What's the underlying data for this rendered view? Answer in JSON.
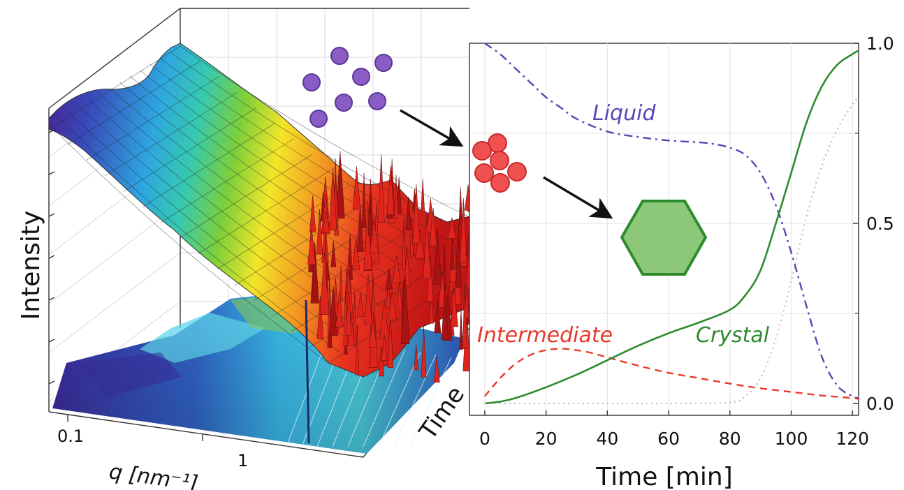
{
  "colors": {
    "liquid": "#5a45b5",
    "intermediate": "#e8392a",
    "crystal": "#2e8b2e",
    "dotted": "#b8b8b8",
    "particle_purple": "#8a5cc6",
    "particle_red": "#f05050",
    "hexagon_fill": "#8cc878"
  },
  "surface_plot": {
    "z_label": "Intensity",
    "x_label": "q [nm⁻¹]",
    "x_tick_labels": [
      "0.1",
      "1"
    ],
    "y_label": "Time",
    "colormap": "jet"
  },
  "icons": [
    "liquid-particles-icon",
    "intermediate-cluster-icon",
    "crystal-hexagon-icon",
    "arrow-icon"
  ],
  "chart_data": [
    {
      "type": "surface",
      "title": "",
      "xlabel": "q [nm⁻¹]",
      "ylabel": "Time",
      "zlabel": "Intensity",
      "x_scale": "log",
      "x_ticks": [
        "0.1",
        "1"
      ]
    },
    {
      "type": "line",
      "title": "",
      "xlabel": "Time [min]",
      "ylabel": "",
      "xlim": [
        -5,
        122
      ],
      "ylim": [
        0,
        1.0
      ],
      "x_ticks": [
        0,
        20,
        40,
        60,
        80,
        100,
        120
      ],
      "y_ticks": [
        0.0,
        0.5,
        1.0
      ],
      "y_tick_labels": [
        "0.0",
        "0.5",
        "1.0"
      ],
      "y_axis_side": "right",
      "series": [
        {
          "name": "Liquid",
          "style": "dash-dot",
          "x": [
            0,
            5,
            10,
            15,
            20,
            25,
            30,
            40,
            50,
            60,
            70,
            75,
            80,
            85,
            90,
            95,
            100,
            105,
            110,
            115,
            120,
            122
          ],
          "y": [
            1.0,
            0.97,
            0.93,
            0.89,
            0.85,
            0.82,
            0.79,
            0.755,
            0.74,
            0.73,
            0.725,
            0.72,
            0.71,
            0.69,
            0.64,
            0.55,
            0.42,
            0.27,
            0.13,
            0.05,
            0.02,
            0.015
          ]
        },
        {
          "name": "Intermediate",
          "style": "dashed",
          "x": [
            0,
            5,
            10,
            15,
            20,
            25,
            30,
            35,
            40,
            50,
            60,
            70,
            80,
            90,
            100,
            110,
            120,
            122
          ],
          "y": [
            0.02,
            0.07,
            0.11,
            0.135,
            0.148,
            0.152,
            0.148,
            0.14,
            0.128,
            0.105,
            0.085,
            0.07,
            0.055,
            0.042,
            0.032,
            0.022,
            0.015,
            0.012
          ]
        },
        {
          "name": "Crystal",
          "style": "solid",
          "x": [
            0,
            5,
            10,
            20,
            30,
            40,
            50,
            60,
            70,
            80,
            85,
            90,
            95,
            100,
            105,
            110,
            115,
            120,
            122
          ],
          "y": [
            0.0,
            0.005,
            0.015,
            0.045,
            0.08,
            0.12,
            0.16,
            0.195,
            0.225,
            0.26,
            0.3,
            0.37,
            0.5,
            0.64,
            0.78,
            0.88,
            0.94,
            0.97,
            0.98
          ]
        },
        {
          "style": "dotted",
          "x": [
            0,
            20,
            40,
            60,
            80,
            85,
            90,
            95,
            100,
            105,
            110,
            115,
            120,
            122
          ],
          "y": [
            0.0,
            0.0,
            0.0,
            0.0,
            0.003,
            0.02,
            0.07,
            0.18,
            0.34,
            0.52,
            0.66,
            0.76,
            0.83,
            0.85
          ]
        }
      ],
      "annotations": [
        "Liquid",
        "Intermediate",
        "Crystal"
      ]
    }
  ]
}
